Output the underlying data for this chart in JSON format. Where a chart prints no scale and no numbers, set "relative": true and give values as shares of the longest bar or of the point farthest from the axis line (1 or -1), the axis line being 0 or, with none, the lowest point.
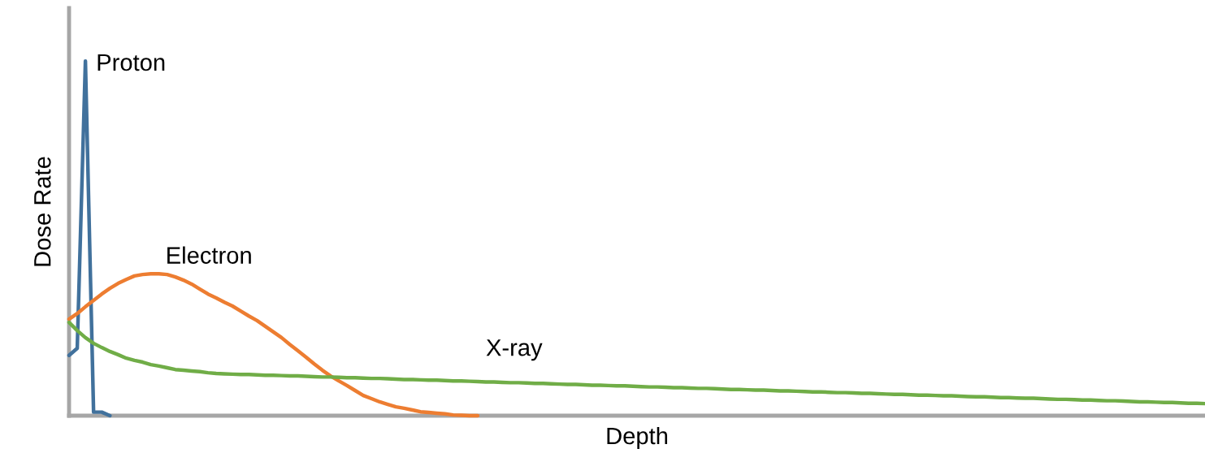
{
  "chart_data": {
    "type": "line",
    "relative": true,
    "xlabel": "Depth",
    "ylabel": "Dose Rate",
    "legend": false,
    "marker": "none",
    "line_style": "solid",
    "categories": [
      null,
      null,
      null,
      null,
      null,
      null,
      null,
      null,
      null,
      null,
      null,
      null,
      null,
      null,
      null,
      null,
      null,
      null,
      null,
      null,
      null,
      null,
      null,
      null,
      null,
      null,
      null,
      null,
      null,
      null,
      null,
      null,
      null,
      null,
      null,
      null,
      null,
      null,
      null,
      null,
      null,
      null,
      null,
      null,
      null,
      null,
      null,
      null,
      null,
      null,
      null,
      null,
      null,
      null,
      null,
      null,
      null,
      null,
      null,
      null,
      null,
      null,
      null,
      null,
      null,
      null,
      null,
      null,
      null,
      null,
      null,
      null,
      null,
      null,
      null,
      null,
      null,
      null,
      null,
      null,
      null,
      null,
      null,
      null,
      null,
      null,
      null,
      null,
      null,
      null,
      null,
      null,
      null,
      null,
      null,
      null,
      null,
      null,
      null,
      null,
      null,
      null,
      null,
      null,
      null,
      null,
      null,
      null,
      null,
      null,
      null,
      null,
      null,
      null,
      null,
      null,
      null,
      null,
      null,
      null,
      null,
      null,
      null,
      null,
      null,
      null,
      null,
      null,
      null,
      null,
      null,
      null,
      null,
      null,
      null,
      null,
      null,
      null,
      null,
      null
    ],
    "series": [
      {
        "name": "Proton",
        "color": "#41719c",
        "values": [
          0.17,
          0.19,
          1.0,
          0.01,
          0.01,
          0.0,
          null,
          null,
          null,
          null,
          null,
          null,
          null,
          null,
          null,
          null,
          null,
          null,
          null,
          null,
          null,
          null,
          null,
          null,
          null,
          null,
          null,
          null,
          null,
          null,
          null,
          null,
          null,
          null,
          null,
          null,
          null,
          null,
          null,
          null,
          null,
          null,
          null,
          null,
          null,
          null,
          null,
          null,
          null,
          null,
          null,
          null,
          null,
          null,
          null,
          null,
          null,
          null,
          null,
          null,
          null,
          null,
          null,
          null,
          null,
          null,
          null,
          null,
          null,
          null,
          null,
          null,
          null,
          null,
          null,
          null,
          null,
          null,
          null,
          null,
          null,
          null,
          null,
          null,
          null,
          null,
          null,
          null,
          null,
          null,
          null,
          null,
          null,
          null,
          null,
          null,
          null,
          null,
          null,
          null,
          null,
          null,
          null,
          null,
          null,
          null,
          null,
          null,
          null,
          null,
          null,
          null,
          null,
          null,
          null,
          null,
          null,
          null,
          null,
          null,
          null,
          null,
          null,
          null,
          null,
          null,
          null,
          null,
          null,
          null,
          null,
          null,
          null,
          null,
          null,
          null,
          null,
          null,
          null,
          null
        ]
      },
      {
        "name": "Electron",
        "color": "#ed7d31",
        "values": [
          0.272,
          0.288,
          0.307,
          0.325,
          0.343,
          0.359,
          0.373,
          0.384,
          0.394,
          0.398,
          0.4,
          0.4,
          0.398,
          0.391,
          0.382,
          0.371,
          0.357,
          0.343,
          0.332,
          0.32,
          0.309,
          0.295,
          0.281,
          0.268,
          0.252,
          0.236,
          0.22,
          0.201,
          0.183,
          0.165,
          0.146,
          0.128,
          0.112,
          0.098,
          0.085,
          0.071,
          0.057,
          0.048,
          0.039,
          0.032,
          0.025,
          0.021,
          0.016,
          0.011,
          0.009,
          0.007,
          0.005,
          0.002,
          0.001,
          0.0,
          0.0,
          null,
          null,
          null,
          null,
          null,
          null,
          null,
          null,
          null,
          null,
          null,
          null,
          null,
          null,
          null,
          null,
          null,
          null,
          null,
          null,
          null,
          null,
          null,
          null,
          null,
          null,
          null,
          null,
          null,
          null,
          null,
          null,
          null,
          null,
          null,
          null,
          null,
          null,
          null,
          null,
          null,
          null,
          null,
          null,
          null,
          null,
          null,
          null,
          null,
          null,
          null,
          null,
          null,
          null,
          null,
          null,
          null,
          null,
          null,
          null,
          null,
          null,
          null,
          null,
          null,
          null,
          null,
          null,
          null,
          null,
          null,
          null,
          null,
          null,
          null,
          null,
          null,
          null,
          null,
          null,
          null,
          null,
          null,
          null,
          null,
          null,
          null,
          null,
          null
        ]
      },
      {
        "name": "X-ray",
        "color": "#70ad47",
        "values": [
          0.263,
          0.24,
          0.22,
          0.204,
          0.192,
          0.181,
          0.172,
          0.162,
          0.156,
          0.151,
          0.144,
          0.14,
          0.135,
          0.13,
          0.128,
          0.126,
          0.124,
          0.121,
          0.119,
          0.118,
          0.117,
          0.116,
          0.116,
          0.115,
          0.114,
          0.114,
          0.113,
          0.112,
          0.112,
          0.111,
          0.11,
          0.109,
          0.109,
          0.108,
          0.107,
          0.107,
          0.106,
          0.105,
          0.105,
          0.104,
          0.103,
          0.102,
          0.102,
          0.101,
          0.1,
          0.1,
          0.099,
          0.098,
          0.098,
          0.097,
          0.096,
          0.095,
          0.095,
          0.094,
          0.093,
          0.093,
          0.092,
          0.091,
          0.091,
          0.09,
          0.089,
          0.088,
          0.088,
          0.087,
          0.086,
          0.086,
          0.085,
          0.084,
          0.084,
          0.083,
          0.082,
          0.081,
          0.081,
          0.08,
          0.079,
          0.079,
          0.078,
          0.077,
          0.077,
          0.076,
          0.075,
          0.074,
          0.074,
          0.073,
          0.072,
          0.072,
          0.071,
          0.07,
          0.07,
          0.069,
          0.068,
          0.067,
          0.067,
          0.066,
          0.065,
          0.065,
          0.064,
          0.063,
          0.063,
          0.062,
          0.061,
          0.06,
          0.06,
          0.059,
          0.058,
          0.058,
          0.057,
          0.056,
          0.056,
          0.055,
          0.054,
          0.053,
          0.053,
          0.052,
          0.051,
          0.051,
          0.05,
          0.049,
          0.049,
          0.048,
          0.047,
          0.046,
          0.046,
          0.045,
          0.044,
          0.044,
          0.043,
          0.042,
          0.042,
          0.041,
          0.04,
          0.039,
          0.039,
          0.038,
          0.037,
          0.037,
          0.036,
          0.035,
          0.035,
          0.034
        ]
      }
    ]
  }
}
